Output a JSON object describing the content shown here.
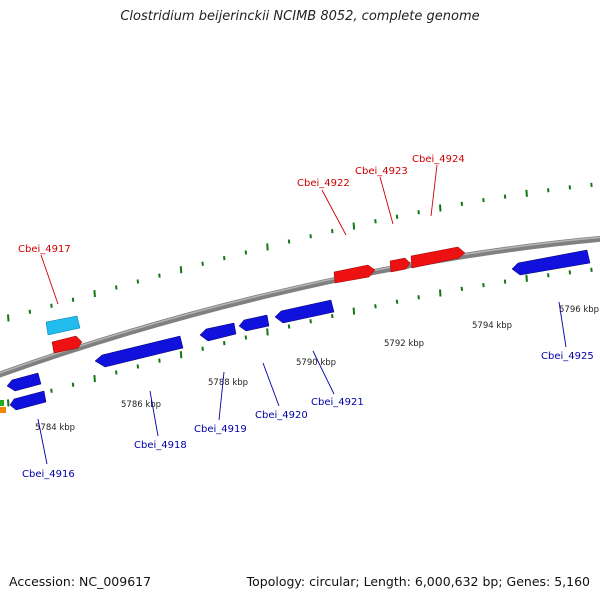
{
  "title": "Clostridium beijerinckii NCIMB 8052, complete genome",
  "footer": {
    "accession": "Accession: NC_009617",
    "topology": "Topology: circular; Length: 6,000,632 bp; Genes: 5,160"
  },
  "colors": {
    "forward_gene": "#ee1111",
    "reverse_gene": "#1111dd",
    "rna_gene": "#22bbee",
    "tick": "#117711",
    "backbone": "#808080",
    "forward_label": "#cc0000",
    "reverse_label": "#0000aa"
  },
  "scale_labels": [
    "5784 kbp",
    "5786 kbp",
    "5788 kbp",
    "5790 kbp",
    "5792 kbp",
    "5794 kbp",
    "5796 kbp"
  ],
  "gene_labels": {
    "forward": [
      "Cbei_4917",
      "Cbei_4922",
      "Cbei_4923",
      "Cbei_4924"
    ],
    "reverse": [
      "Cbei_4916",
      "Cbei_4918",
      "Cbei_4919",
      "Cbei_4920",
      "Cbei_4921",
      "Cbei_4925"
    ]
  }
}
